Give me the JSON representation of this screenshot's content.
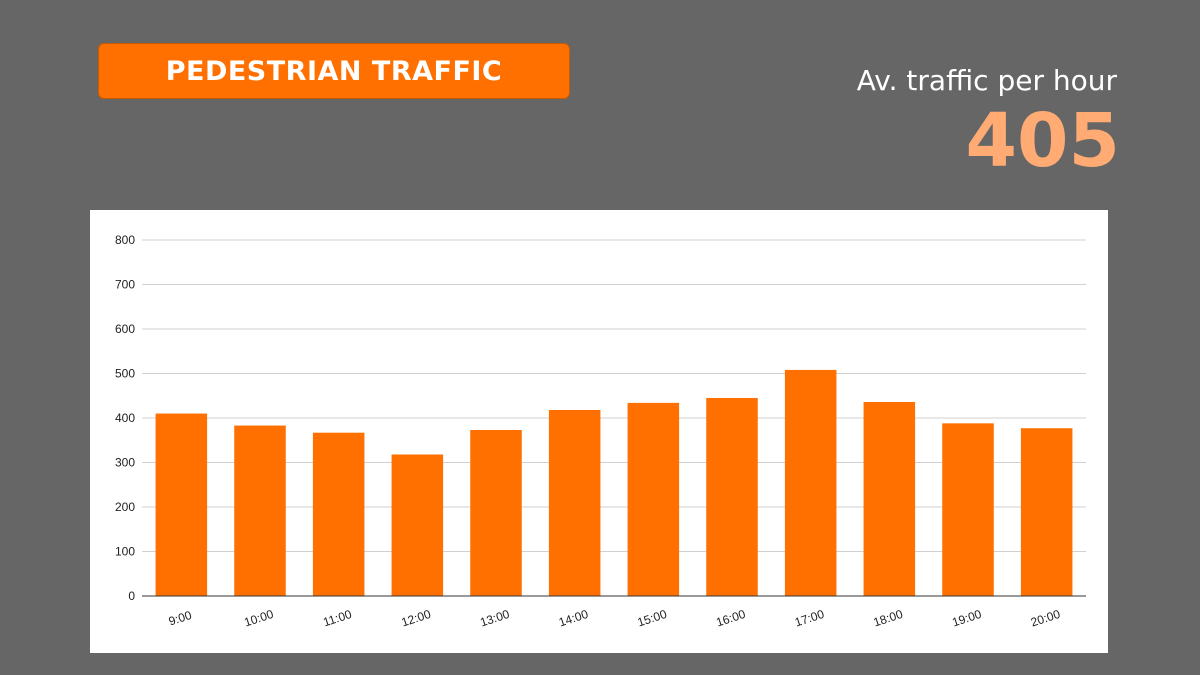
{
  "header": {
    "title": "PEDESTRIAN TRAFFIC",
    "stat_label": "Av. traffic per hour",
    "stat_value": "405"
  },
  "colors": {
    "background": "#666666",
    "accent": "#ff7000",
    "stat_value": "#ffab73",
    "bar": "#ff7000"
  },
  "chart_data": {
    "type": "bar",
    "categories": [
      "9:00",
      "10:00",
      "11:00",
      "12:00",
      "13:00",
      "14:00",
      "15:00",
      "16:00",
      "17:00",
      "18:00",
      "19:00",
      "20:00"
    ],
    "values": [
      410,
      383,
      367,
      318,
      373,
      418,
      434,
      445,
      508,
      436,
      388,
      377
    ],
    "ylim": [
      0,
      800
    ],
    "yticks": [
      0,
      100,
      200,
      300,
      400,
      500,
      600,
      700,
      800
    ],
    "grid": true,
    "legend": "none"
  }
}
